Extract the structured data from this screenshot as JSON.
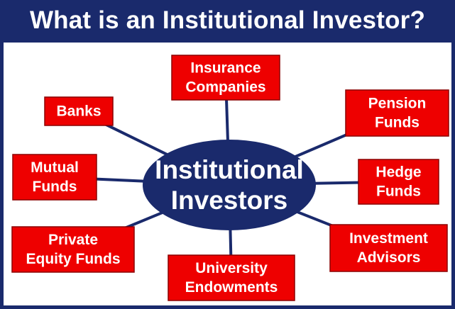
{
  "title": "What is an Institutional Investor?",
  "colors": {
    "frame": "#1a2a6c",
    "hub": "#1a2a6c",
    "box_fill": "#ee0000",
    "box_stroke": "#8b0000",
    "connector": "#1a2a6c",
    "text": "#ffffff"
  },
  "hub": {
    "lines": [
      "Institutional",
      "Investors"
    ]
  },
  "nodes": [
    {
      "id": "insurance-companies",
      "lines": [
        "Insurance",
        "Companies"
      ]
    },
    {
      "id": "banks",
      "lines": [
        "Banks"
      ]
    },
    {
      "id": "pension-funds",
      "lines": [
        "Pension",
        "Funds"
      ]
    },
    {
      "id": "mutual-funds",
      "lines": [
        "Mutual",
        "Funds"
      ]
    },
    {
      "id": "hedge-funds",
      "lines": [
        "Hedge",
        "Funds"
      ]
    },
    {
      "id": "private-equity-funds",
      "lines": [
        "Private",
        "Equity Funds"
      ]
    },
    {
      "id": "investment-advisors",
      "lines": [
        "Investment",
        "Advisors"
      ]
    },
    {
      "id": "university-endowments",
      "lines": [
        "University",
        "Endowments"
      ]
    }
  ]
}
